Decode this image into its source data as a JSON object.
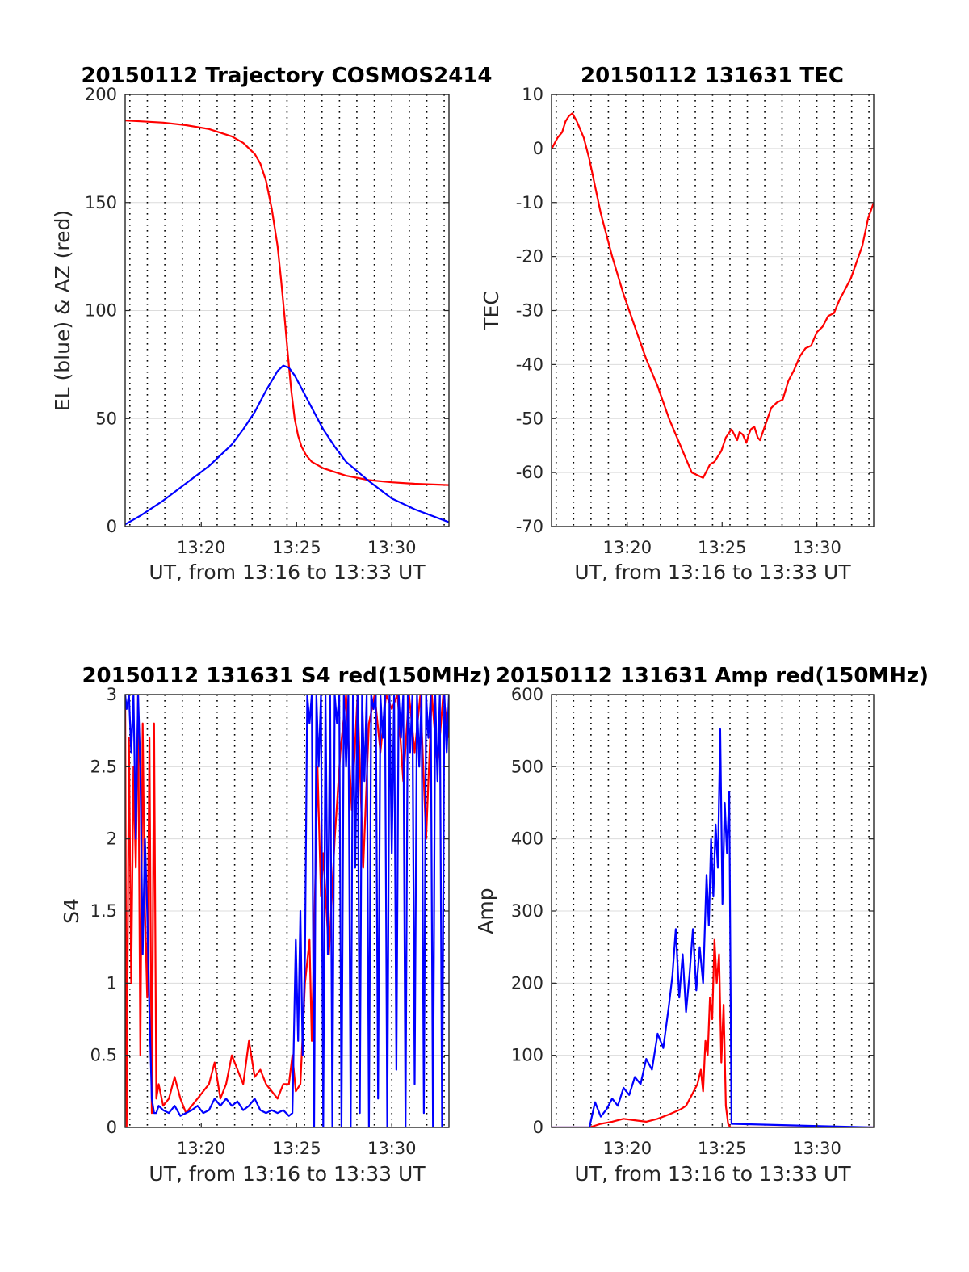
{
  "chart_data": [
    {
      "type": "line",
      "title": "20150112 Trajectory COSMOS2414",
      "xlabel": "UT, from 13:16 to 13:33 UT",
      "ylabel": "EL (blue) & AZ (red)",
      "xlim": [
        13.2667,
        13.55
      ],
      "ylim": [
        0,
        200
      ],
      "xticks": [
        {
          "label": "13:20",
          "value": 13.3333
        },
        {
          "label": "13:25",
          "value": 13.4167
        },
        {
          "label": "13:30",
          "value": 13.5
        }
      ],
      "yticks": [
        "0",
        "50",
        "100",
        "150",
        "200"
      ],
      "yticks_values": [
        0,
        50,
        100,
        150,
        200
      ],
      "vertical_dotted_lines": [
        13.2708,
        13.2861,
        13.3014,
        13.3167,
        13.3319,
        13.3472,
        13.3625,
        13.3778,
        13.3931,
        13.4083,
        13.4236,
        13.4389,
        13.4542,
        13.4694,
        13.4847,
        13.5,
        13.5153,
        13.5306,
        13.5458
      ],
      "grid": "horizontal",
      "series": [
        {
          "color": "#ff0000",
          "x": [
            13.2667,
            13.28,
            13.3,
            13.32,
            13.34,
            13.36,
            13.37,
            13.38,
            13.385,
            13.39,
            13.395,
            13.4,
            13.403,
            13.406,
            13.409,
            13.412,
            13.415,
            13.418,
            13.421,
            13.425,
            13.43,
            13.44,
            13.46,
            13.48,
            13.5,
            13.52,
            13.55
          ],
          "values": [
            188,
            187.6,
            187,
            185.8,
            184,
            180.6,
            177.6,
            172.5,
            168,
            160,
            147,
            130,
            115,
            98,
            80,
            63,
            50,
            42,
            37,
            33,
            30,
            27,
            23.5,
            21.5,
            20.5,
            19.8,
            19.2
          ]
        },
        {
          "color": "#0000ff",
          "x": [
            13.2667,
            13.28,
            13.3,
            13.32,
            13.34,
            13.36,
            13.37,
            13.38,
            13.39,
            13.4,
            13.405,
            13.41,
            13.415,
            13.42,
            13.43,
            13.44,
            13.45,
            13.46,
            13.48,
            13.5,
            13.52,
            13.55
          ],
          "values": [
            1,
            5,
            12,
            20,
            28,
            38,
            45,
            53,
            63,
            72,
            74.5,
            73.5,
            70,
            65,
            55,
            45,
            37,
            30,
            21,
            13,
            8,
            2
          ]
        }
      ]
    },
    {
      "type": "line",
      "title": "20150112 131631 TEC",
      "xlabel": "UT, from 13:16 to 13:33 UT",
      "ylabel": "TEC",
      "xlim": [
        13.2667,
        13.55
      ],
      "ylim": [
        -70,
        10
      ],
      "xticks": [
        {
          "label": "13:20",
          "value": 13.3333
        },
        {
          "label": "13:25",
          "value": 13.4167
        },
        {
          "label": "13:30",
          "value": 13.5
        }
      ],
      "yticks": [
        "-70",
        "-60",
        "-50",
        "-40",
        "-30",
        "-20",
        "-10",
        "0",
        "10"
      ],
      "yticks_values": [
        -70,
        -60,
        -50,
        -40,
        -30,
        -20,
        -10,
        0,
        10
      ],
      "vertical_dotted_lines": [
        13.2708,
        13.2861,
        13.3014,
        13.3167,
        13.3319,
        13.3472,
        13.3625,
        13.3778,
        13.3931,
        13.4083,
        13.4236,
        13.4389,
        13.4542,
        13.4694,
        13.4847,
        13.5,
        13.5153,
        13.5306,
        13.5458
      ],
      "grid": "both",
      "series": [
        {
          "color": "#ff0000",
          "x": [
            13.267,
            13.272,
            13.276,
            13.279,
            13.282,
            13.285,
            13.289,
            13.295,
            13.3,
            13.31,
            13.32,
            13.33,
            13.34,
            13.35,
            13.36,
            13.37,
            13.38,
            13.39,
            13.4,
            13.406,
            13.41,
            13.413,
            13.416,
            13.42,
            13.425,
            13.43,
            13.432,
            13.435,
            13.438,
            13.44,
            13.442,
            13.445,
            13.448,
            13.45,
            13.455,
            13.46,
            13.465,
            13.47,
            13.475,
            13.48,
            13.485,
            13.49,
            13.495,
            13.5,
            13.505,
            13.51,
            13.515,
            13.52,
            13.525,
            13.53,
            13.535,
            13.54,
            13.545,
            13.55
          ],
          "values": [
            0,
            2,
            3,
            5,
            6,
            6.5,
            5,
            2,
            -2,
            -12,
            -20,
            -27,
            -33,
            -39,
            -44,
            -50,
            -55,
            -60,
            -61,
            -58.5,
            -58,
            -57,
            -56,
            -53.5,
            -52,
            -54,
            -52.5,
            -53,
            -54.5,
            -53,
            -52,
            -51.5,
            -53.5,
            -54,
            -51,
            -48,
            -47,
            -46.5,
            -43,
            -41,
            -38.5,
            -37,
            -36.5,
            -34,
            -33,
            -31,
            -30.5,
            -28,
            -26,
            -24,
            -21,
            -18,
            -13,
            -10
          ]
        }
      ]
    },
    {
      "type": "line",
      "title": "20150112 131631 S4 red(150MHz)",
      "xlabel": "UT, from 13:16 to 13:33 UT",
      "ylabel": "S4",
      "xlim": [
        13.2667,
        13.55
      ],
      "ylim": [
        0,
        3
      ],
      "xticks": [
        {
          "label": "13:20",
          "value": 13.3333
        },
        {
          "label": "13:25",
          "value": 13.4167
        },
        {
          "label": "13:30",
          "value": 13.5
        }
      ],
      "yticks": [
        "0",
        "0.5",
        "1",
        "1.5",
        "2",
        "2.5",
        "3"
      ],
      "yticks_values": [
        0,
        0.5,
        1,
        1.5,
        2,
        2.5,
        3
      ],
      "vertical_dotted_lines": [
        13.2708,
        13.2861,
        13.3014,
        13.3167,
        13.3319,
        13.3472,
        13.3625,
        13.3778,
        13.3931,
        13.4083,
        13.4236,
        13.4389,
        13.4542,
        13.4694,
        13.4847,
        13.5,
        13.5153,
        13.5306,
        13.5458
      ],
      "grid": "horizontal",
      "series": [
        {
          "color": "#ff0000",
          "x": [
            13.2667,
            13.268,
            13.27,
            13.272,
            13.274,
            13.276,
            13.278,
            13.28,
            13.282,
            13.284,
            13.286,
            13.288,
            13.29,
            13.292,
            13.294,
            13.296,
            13.3,
            13.305,
            13.31,
            13.315,
            13.32,
            13.325,
            13.33,
            13.335,
            13.34,
            13.345,
            13.35,
            13.355,
            13.36,
            13.365,
            13.37,
            13.375,
            13.38,
            13.385,
            13.39,
            13.395,
            13.4,
            13.405,
            13.41,
            13.413,
            13.416,
            13.42,
            13.424,
            13.428,
            13.43,
            13.432,
            13.435,
            13.438,
            13.44,
            13.445,
            13.45,
            13.455,
            13.46,
            13.465,
            13.47,
            13.475,
            13.48,
            13.485,
            13.49,
            13.495,
            13.5,
            13.505,
            13.51,
            13.515,
            13.52,
            13.525,
            13.53,
            13.535,
            13.54,
            13.545,
            13.55
          ],
          "values": [
            3,
            0,
            2.7,
            1.0,
            2.5,
            1.8,
            3,
            0.5,
            2.8,
            1.5,
            0.9,
            2.7,
            0.1,
            2.8,
            0.2,
            0.3,
            0.15,
            0.2,
            0.35,
            0.2,
            0.1,
            0.15,
            0.2,
            0.25,
            0.3,
            0.45,
            0.2,
            0.3,
            0.5,
            0.4,
            0.3,
            0.6,
            0.35,
            0.4,
            0.3,
            0.25,
            0.2,
            0.3,
            0.3,
            0.5,
            0.25,
            0.3,
            1.0,
            1.3,
            0.6,
            1.3,
            2.5,
            1.6,
            1.9,
            1.2,
            2.0,
            2.6,
            3,
            2.2,
            3,
            1.8,
            2.8,
            3,
            2.6,
            3,
            2.9,
            3,
            2.4,
            3,
            2.6,
            3,
            2.0,
            3,
            2.5,
            3,
            2.7
          ]
        },
        {
          "color": "#0000ff",
          "x": [
            13.2667,
            13.268,
            13.27,
            13.272,
            13.274,
            13.276,
            13.278,
            13.28,
            13.282,
            13.284,
            13.286,
            13.288,
            13.29,
            13.292,
            13.294,
            13.296,
            13.3,
            13.305,
            13.31,
            13.315,
            13.32,
            13.325,
            13.33,
            13.335,
            13.34,
            13.345,
            13.35,
            13.355,
            13.36,
            13.365,
            13.37,
            13.375,
            13.38,
            13.385,
            13.39,
            13.395,
            13.4,
            13.405,
            13.41,
            13.413,
            13.416,
            13.418,
            13.42,
            13.422,
            13.424,
            13.426,
            13.428,
            13.43,
            13.432,
            13.434,
            13.436,
            13.438,
            13.44,
            13.442,
            13.444,
            13.446,
            13.448,
            13.45,
            13.452,
            13.454,
            13.456,
            13.458,
            13.46,
            13.462,
            13.464,
            13.466,
            13.468,
            13.47,
            13.472,
            13.474,
            13.476,
            13.478,
            13.48,
            13.482,
            13.484,
            13.486,
            13.488,
            13.49,
            13.492,
            13.494,
            13.496,
            13.498,
            13.5,
            13.502,
            13.504,
            13.506,
            13.508,
            13.51,
            13.512,
            13.514,
            13.516,
            13.518,
            13.52,
            13.522,
            13.524,
            13.526,
            13.528,
            13.53,
            13.532,
            13.534,
            13.536,
            13.538,
            13.54,
            13.542,
            13.544,
            13.546,
            13.548,
            13.55
          ],
          "values": [
            3,
            2.9,
            3,
            2.6,
            3,
            2.0,
            3,
            2.5,
            1.2,
            2.0,
            1.5,
            0.8,
            0.2,
            0.1,
            0.1,
            0.15,
            0.12,
            0.1,
            0.15,
            0.08,
            0.1,
            0.12,
            0.15,
            0.1,
            0.12,
            0.2,
            0.15,
            0.2,
            0.15,
            0.18,
            0.12,
            0.15,
            0.2,
            0.12,
            0.1,
            0.12,
            0.1,
            0.12,
            0.08,
            0.1,
            1.3,
            0.6,
            1.5,
            0.5,
            1.2,
            3,
            2.8,
            3,
            0,
            3,
            2.5,
            3,
            0,
            3,
            1.2,
            3,
            0,
            3,
            2.8,
            3,
            0,
            3,
            2.5,
            3,
            0,
            3,
            1.8,
            3,
            0.1,
            3,
            2.4,
            3,
            0,
            3,
            2.9,
            3,
            0.2,
            3,
            2.7,
            3,
            0,
            3,
            1.9,
            3,
            0.4,
            3,
            2.7,
            3,
            0,
            3,
            2.6,
            3,
            0.3,
            3,
            2.5,
            3,
            0.1,
            3,
            2.7,
            3,
            0,
            3,
            2.4,
            3,
            0,
            3,
            2.6,
            3
          ]
        }
      ]
    },
    {
      "type": "line",
      "title": "20150112 131631 Amp red(150MHz)",
      "xlabel": "UT, from 13:16 to 13:33 UT",
      "ylabel": "Amp",
      "xlim": [
        13.2667,
        13.55
      ],
      "ylim": [
        0,
        600
      ],
      "xticks": [
        {
          "label": "13:20",
          "value": 13.3333
        },
        {
          "label": "13:25",
          "value": 13.4167
        },
        {
          "label": "13:30",
          "value": 13.5
        }
      ],
      "yticks": [
        "0",
        "100",
        "200",
        "300",
        "400",
        "500",
        "600"
      ],
      "yticks_values": [
        0,
        100,
        200,
        300,
        400,
        500,
        600
      ],
      "vertical_dotted_lines": [
        13.2708,
        13.2861,
        13.3014,
        13.3167,
        13.3319,
        13.3472,
        13.3625,
        13.3778,
        13.3931,
        13.4083,
        13.4236,
        13.4389,
        13.4542,
        13.4694,
        13.4847,
        13.5,
        13.5153,
        13.5306,
        13.5458
      ],
      "grid": "both",
      "series": [
        {
          "color": "#ff0000",
          "x": [
            13.2667,
            13.3,
            13.31,
            13.32,
            13.33,
            13.34,
            13.35,
            13.36,
            13.37,
            13.38,
            13.385,
            13.39,
            13.395,
            13.398,
            13.4,
            13.402,
            13.404,
            13.406,
            13.408,
            13.41,
            13.412,
            13.414,
            13.416,
            13.418,
            13.42,
            13.422,
            13.424,
            13.55
          ],
          "values": [
            0,
            0,
            5,
            8,
            12,
            10,
            8,
            12,
            18,
            25,
            30,
            45,
            60,
            80,
            50,
            120,
            100,
            180,
            150,
            260,
            200,
            240,
            90,
            170,
            30,
            5,
            0,
            0
          ]
        },
        {
          "color": "#0000ff",
          "x": [
            13.2667,
            13.3,
            13.305,
            13.31,
            13.315,
            13.32,
            13.325,
            13.33,
            13.335,
            13.34,
            13.345,
            13.35,
            13.355,
            13.36,
            13.365,
            13.37,
            13.373,
            13.376,
            13.379,
            13.382,
            13.385,
            13.388,
            13.391,
            13.394,
            13.397,
            13.4,
            13.403,
            13.405,
            13.407,
            13.409,
            13.411,
            13.413,
            13.415,
            13.417,
            13.419,
            13.421,
            13.423,
            13.425,
            13.55
          ],
          "values": [
            0,
            0,
            35,
            15,
            25,
            40,
            30,
            55,
            45,
            70,
            60,
            95,
            80,
            130,
            110,
            170,
            210,
            275,
            180,
            240,
            160,
            210,
            275,
            190,
            250,
            200,
            350,
            280,
            400,
            320,
            420,
            360,
            552,
            310,
            450,
            380,
            465,
            5,
            0
          ]
        }
      ]
    }
  ]
}
